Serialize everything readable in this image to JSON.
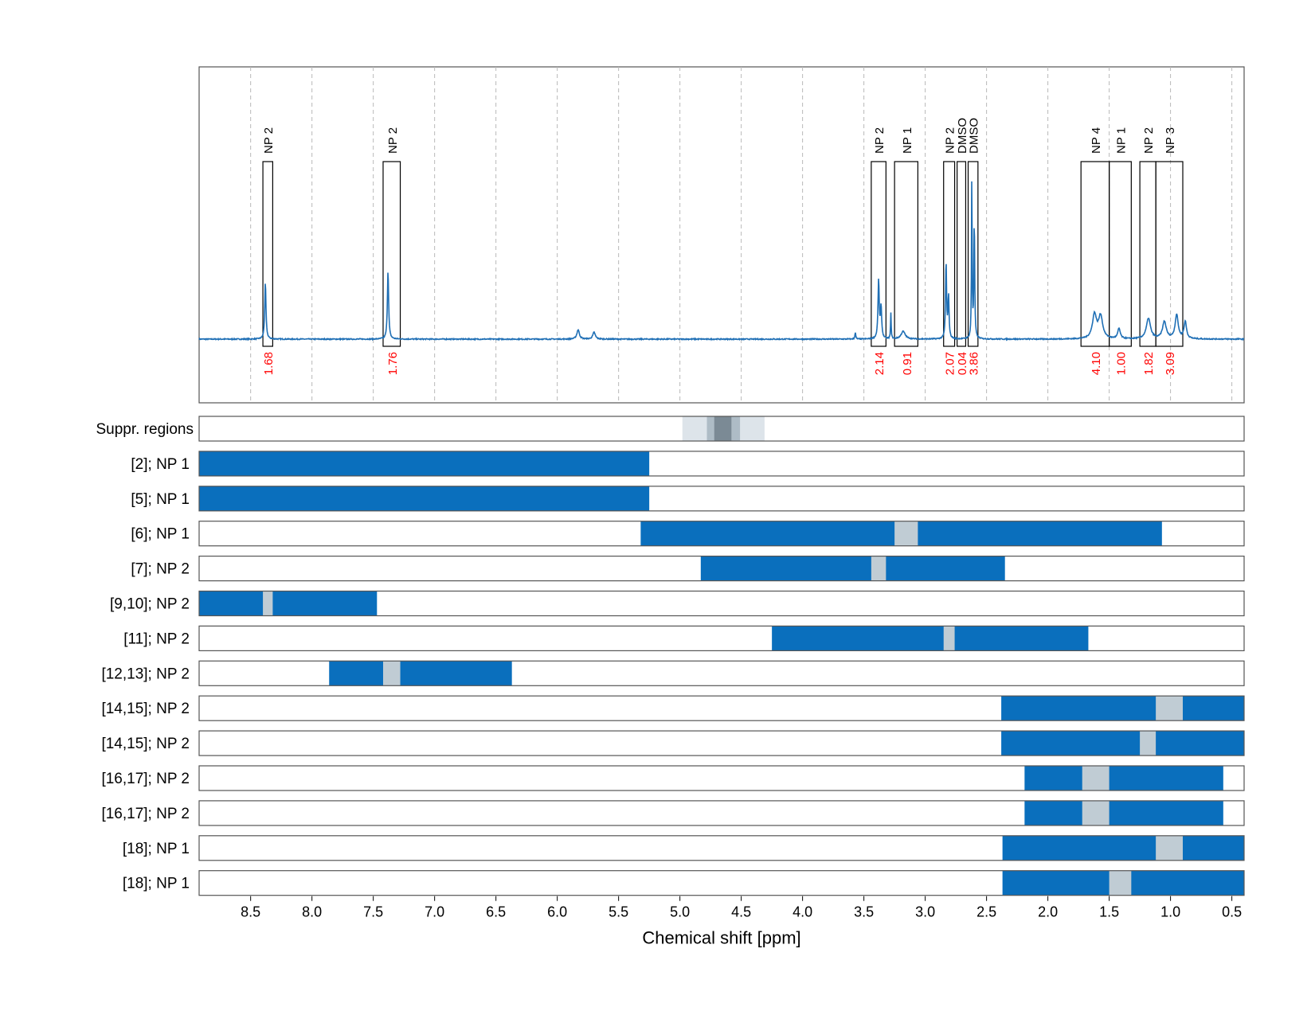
{
  "chart_data": {
    "type": "line",
    "xlabel": "Chemical shift [ppm]",
    "x_axis": {
      "range": [
        8.92,
        0.4
      ],
      "reversed": true,
      "ticks": [
        8.5,
        8.0,
        7.5,
        7.0,
        6.5,
        6.0,
        5.5,
        5.0,
        4.5,
        4.0,
        3.5,
        3.0,
        2.5,
        2.0,
        1.5,
        1.0,
        0.5
      ],
      "tick_labels": [
        "8.5",
        "8.0",
        "7.5",
        "7.0",
        "6.5",
        "6.0",
        "5.5",
        "5.0",
        "4.5",
        "4.0",
        "3.5",
        "3.0",
        "2.5",
        "2.0",
        "1.5",
        "1.0",
        "0.5"
      ],
      "grid": "dashed vertical"
    },
    "spectrum": {
      "color": "#1f6fb5",
      "baseline": 0,
      "peaks": [
        {
          "ppm": 8.38,
          "height": 0.33,
          "width": 0.006
        },
        {
          "ppm": 7.38,
          "height": 0.4,
          "width": 0.006
        },
        {
          "ppm": 5.83,
          "height": 0.055,
          "width": 0.012
        },
        {
          "ppm": 5.7,
          "height": 0.04,
          "width": 0.012
        },
        {
          "ppm": 3.57,
          "height": 0.04,
          "width": 0.004
        },
        {
          "ppm": 3.38,
          "height": 0.34,
          "width": 0.006
        },
        {
          "ppm": 3.36,
          "height": 0.18,
          "width": 0.006
        },
        {
          "ppm": 3.28,
          "height": 0.15,
          "width": 0.003
        },
        {
          "ppm": 3.18,
          "height": 0.045,
          "width": 0.02
        },
        {
          "ppm": 2.83,
          "height": 0.45,
          "width": 0.005
        },
        {
          "ppm": 2.81,
          "height": 0.25,
          "width": 0.005
        },
        {
          "ppm": 2.62,
          "height": 0.98,
          "width": 0.003
        },
        {
          "ppm": 2.6,
          "height": 0.7,
          "width": 0.004
        },
        {
          "ppm": 1.62,
          "height": 0.14,
          "width": 0.02
        },
        {
          "ppm": 1.57,
          "height": 0.13,
          "width": 0.02
        },
        {
          "ppm": 1.42,
          "height": 0.06,
          "width": 0.012
        },
        {
          "ppm": 1.18,
          "height": 0.12,
          "width": 0.02
        },
        {
          "ppm": 1.05,
          "height": 0.1,
          "width": 0.018
        },
        {
          "ppm": 0.95,
          "height": 0.14,
          "width": 0.015
        },
        {
          "ppm": 0.88,
          "height": 0.1,
          "width": 0.012
        }
      ]
    },
    "integration_regions": [
      {
        "label": "NP 2",
        "from": 8.4,
        "to": 8.32,
        "value": "1.68"
      },
      {
        "label": "NP 2",
        "from": 7.42,
        "to": 7.28,
        "value": "1.76"
      },
      {
        "label": "NP 2",
        "from": 3.44,
        "to": 3.32,
        "value": "2.14"
      },
      {
        "label": "NP 1",
        "from": 3.25,
        "to": 3.06,
        "value": "0.91"
      },
      {
        "label": "NP 2",
        "from": 2.85,
        "to": 2.76,
        "value": "2.07"
      },
      {
        "label": "DMSO",
        "from": 2.74,
        "to": 2.67,
        "value": "0.04"
      },
      {
        "label": "DMSO",
        "from": 2.65,
        "to": 2.57,
        "value": "3.86"
      },
      {
        "label": "NP 4",
        "from": 1.73,
        "to": 1.5,
        "value": "4.10"
      },
      {
        "label": "NP 1",
        "from": 1.5,
        "to": 1.32,
        "value": "1.00"
      },
      {
        "label": "NP 2",
        "from": 1.25,
        "to": 1.12,
        "value": "1.82"
      },
      {
        "label": "NP 3",
        "from": 1.12,
        "to": 0.9,
        "value": "3.09"
      }
    ],
    "suppression_row": {
      "label": "Suppr. regions",
      "bands": [
        {
          "from": 4.98,
          "to": 4.31,
          "shade": "light"
        },
        {
          "from": 4.78,
          "to": 4.51,
          "shade": "medium"
        },
        {
          "from": 4.72,
          "to": 4.58,
          "shade": "dark"
        }
      ]
    },
    "range_rows": [
      {
        "label": "[2]; NP 1",
        "from": 8.92,
        "to": 5.25,
        "gaps": []
      },
      {
        "label": "[5]; NP 1",
        "from": 8.92,
        "to": 5.25,
        "gaps": []
      },
      {
        "label": "[6]; NP 1",
        "from": 5.32,
        "to": 1.07,
        "gaps": [
          [
            3.25,
            3.06
          ]
        ]
      },
      {
        "label": "[7]; NP 2",
        "from": 4.83,
        "to": 2.35,
        "gaps": [
          [
            3.44,
            3.32
          ]
        ]
      },
      {
        "label": "[9,10]; NP 2",
        "from": 8.92,
        "to": 7.47,
        "gaps": [
          [
            8.4,
            8.32
          ]
        ]
      },
      {
        "label": "[11]; NP 2",
        "from": 4.25,
        "to": 1.67,
        "gaps": [
          [
            2.85,
            2.76
          ]
        ]
      },
      {
        "label": "[12,13]; NP 2",
        "from": 7.86,
        "to": 6.37,
        "gaps": [
          [
            7.42,
            7.28
          ]
        ]
      },
      {
        "label": "[14,15]; NP 2",
        "from": 2.38,
        "to": 0.4,
        "gaps": [
          [
            1.12,
            0.9
          ]
        ]
      },
      {
        "label": "[14,15]; NP 2",
        "from": 2.38,
        "to": 0.4,
        "gaps": [
          [
            1.25,
            1.12
          ]
        ]
      },
      {
        "label": "[16,17]; NP 2",
        "from": 2.19,
        "to": 0.57,
        "gaps": [
          [
            1.72,
            1.5
          ]
        ]
      },
      {
        "label": "[16,17]; NP 2",
        "from": 2.19,
        "to": 0.57,
        "gaps": [
          [
            1.72,
            1.5
          ]
        ]
      },
      {
        "label": "[18]; NP 1",
        "from": 2.37,
        "to": 0.4,
        "gaps": [
          [
            1.12,
            0.9
          ]
        ]
      },
      {
        "label": "[18]; NP 1",
        "from": 2.37,
        "to": 0.4,
        "gaps": [
          [
            1.5,
            1.32
          ]
        ]
      }
    ],
    "colors": {
      "range_fill": "#0a6fbd",
      "gap_fill": "#c0ccd4",
      "suppr_light": "#dde4ea",
      "suppr_medium": "#aebcc6",
      "suppr_dark": "#7b8a95",
      "integral_value": "#ff0000",
      "frame": "#555555",
      "grid": "#b8b8b8"
    }
  }
}
